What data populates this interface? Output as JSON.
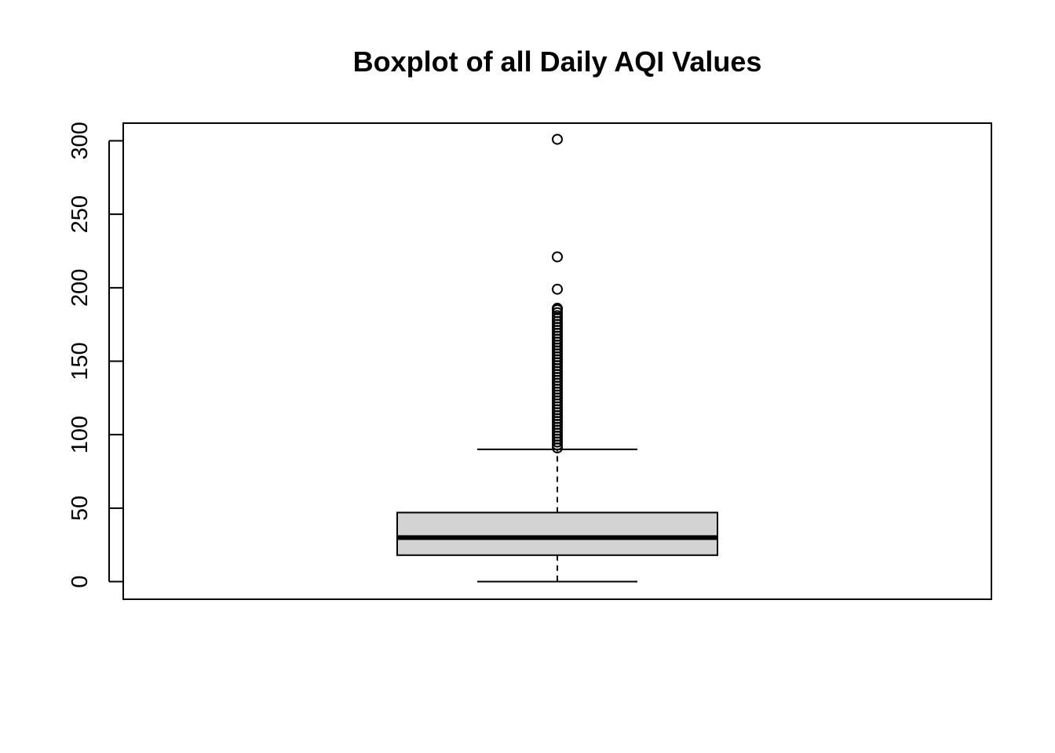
{
  "chart_data": {
    "type": "boxplot",
    "title": "Boxplot of all Daily AQI Values",
    "xlabel": "",
    "ylabel": "",
    "ylim": [
      -12,
      312
    ],
    "y_ticks": [
      0,
      50,
      100,
      150,
      200,
      250,
      300
    ],
    "box": {
      "min_whisker": 0,
      "q1": 18,
      "median": 30,
      "q3": 47,
      "max_whisker": 90
    },
    "outliers": [
      301,
      221,
      199,
      186,
      185,
      183,
      181,
      179,
      177,
      175,
      173,
      171,
      169,
      167,
      165,
      163,
      161,
      159,
      157,
      155,
      153,
      151,
      149,
      147,
      145,
      143,
      141,
      139,
      137,
      135,
      133,
      131,
      129,
      127,
      125,
      123,
      121,
      119,
      117,
      115,
      113,
      111,
      109,
      107,
      105,
      103,
      101,
      99,
      97,
      95,
      93,
      91
    ],
    "box_fill": "#d3d3d3",
    "line_color": "#000000",
    "grid": false,
    "legend": "none"
  }
}
